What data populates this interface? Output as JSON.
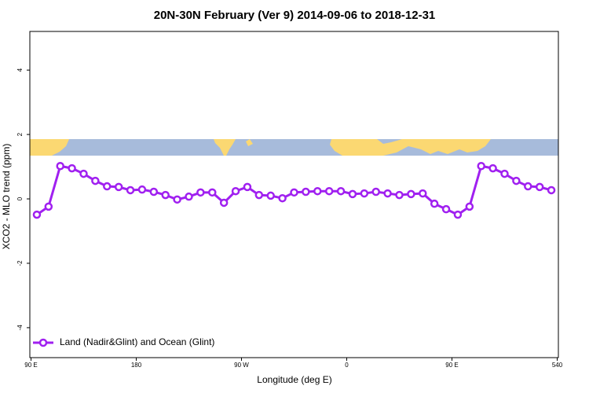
{
  "chart_data": {
    "type": "line",
    "title": "20N-30N February (Ver 9)   2014-09-06 to 2018-12-31",
    "x_label": "Longitude (deg E)",
    "y_label": "XCO2 - MLO trend (ppm)",
    "xlim": [
      89,
      541
    ],
    "ylim": [
      -4.93,
      5.2
    ],
    "xticks": [
      {
        "value": 90,
        "label": "90 E"
      },
      180,
      {
        "value": 270,
        "label": "90 W"
      },
      {
        "value": 360,
        "label": "0"
      },
      {
        "value": 450,
        "label": "90 E"
      },
      540
    ],
    "yticks": [
      4,
      2,
      0,
      -2,
      -4
    ],
    "legend": "bottomleft",
    "x": [
      95,
      105,
      115,
      125,
      135,
      145,
      155,
      165,
      175,
      185,
      195,
      205,
      215,
      225,
      235,
      245,
      255,
      265,
      275,
      285,
      295,
      305,
      315,
      325,
      335,
      345,
      355,
      365,
      375,
      385,
      395,
      405,
      415,
      425,
      435,
      445,
      455,
      465,
      475,
      485,
      495,
      505,
      515,
      525,
      535
    ],
    "series": [
      {
        "name": "Land (Nadir&Glint) and Ocean (Glint)",
        "color": "#a020f0",
        "values": [
          -0.49,
          -0.24,
          1.02,
          0.95,
          0.78,
          0.56,
          0.39,
          0.37,
          0.27,
          0.29,
          0.22,
          0.12,
          -0.02,
          0.07,
          0.2,
          0.2,
          -0.12,
          0.24,
          0.37,
          0.12,
          0.1,
          0.02,
          0.2,
          0.22,
          0.24,
          0.24,
          0.24,
          0.15,
          0.17,
          0.22,
          0.17,
          0.12,
          0.15,
          0.17,
          -0.15,
          -0.32,
          -0.49,
          -0.24,
          1.02,
          0.95,
          0.78,
          0.56,
          0.39,
          0.37,
          0.27
        ]
      }
    ]
  }
}
